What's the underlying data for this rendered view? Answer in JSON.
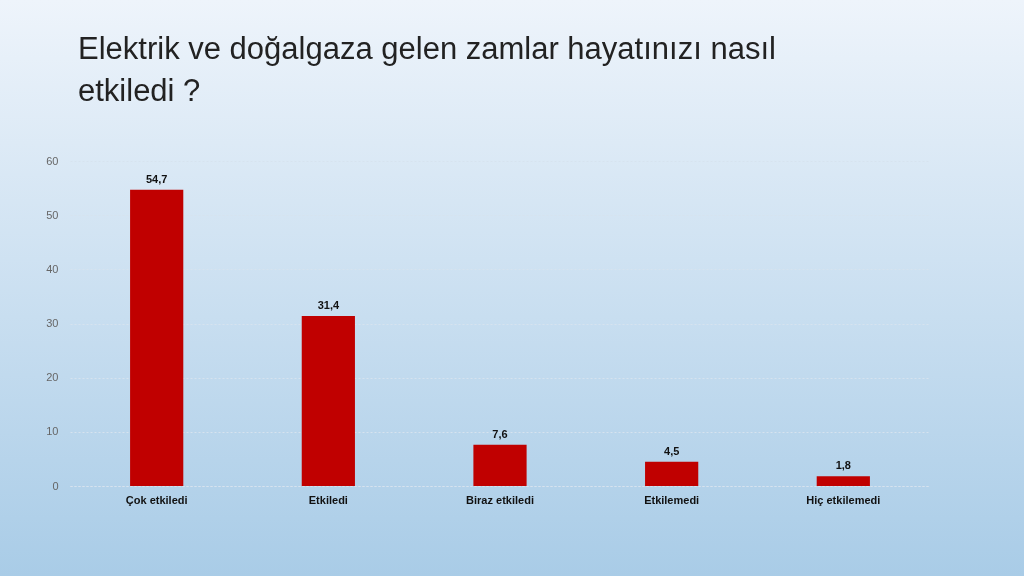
{
  "chart_data": {
    "type": "bar",
    "title": "Elektrik ve doğalgaza gelen zamlar hayatınızı nasıl etkiledi ?",
    "categories": [
      "Çok etkiledi",
      "Etkiledi",
      "Biraz etkiledi",
      "Etkilemedi",
      "Hiç etkilemedi"
    ],
    "values": [
      54.7,
      31.4,
      7.6,
      4.5,
      1.8
    ],
    "value_labels": [
      "54,7",
      "31,4",
      "7,6",
      "4,5",
      "1,8"
    ],
    "color": "#c00000",
    "ylim": [
      0,
      60
    ],
    "yticks": [
      0,
      10,
      20,
      30,
      40,
      50,
      60
    ],
    "grid": "y"
  }
}
